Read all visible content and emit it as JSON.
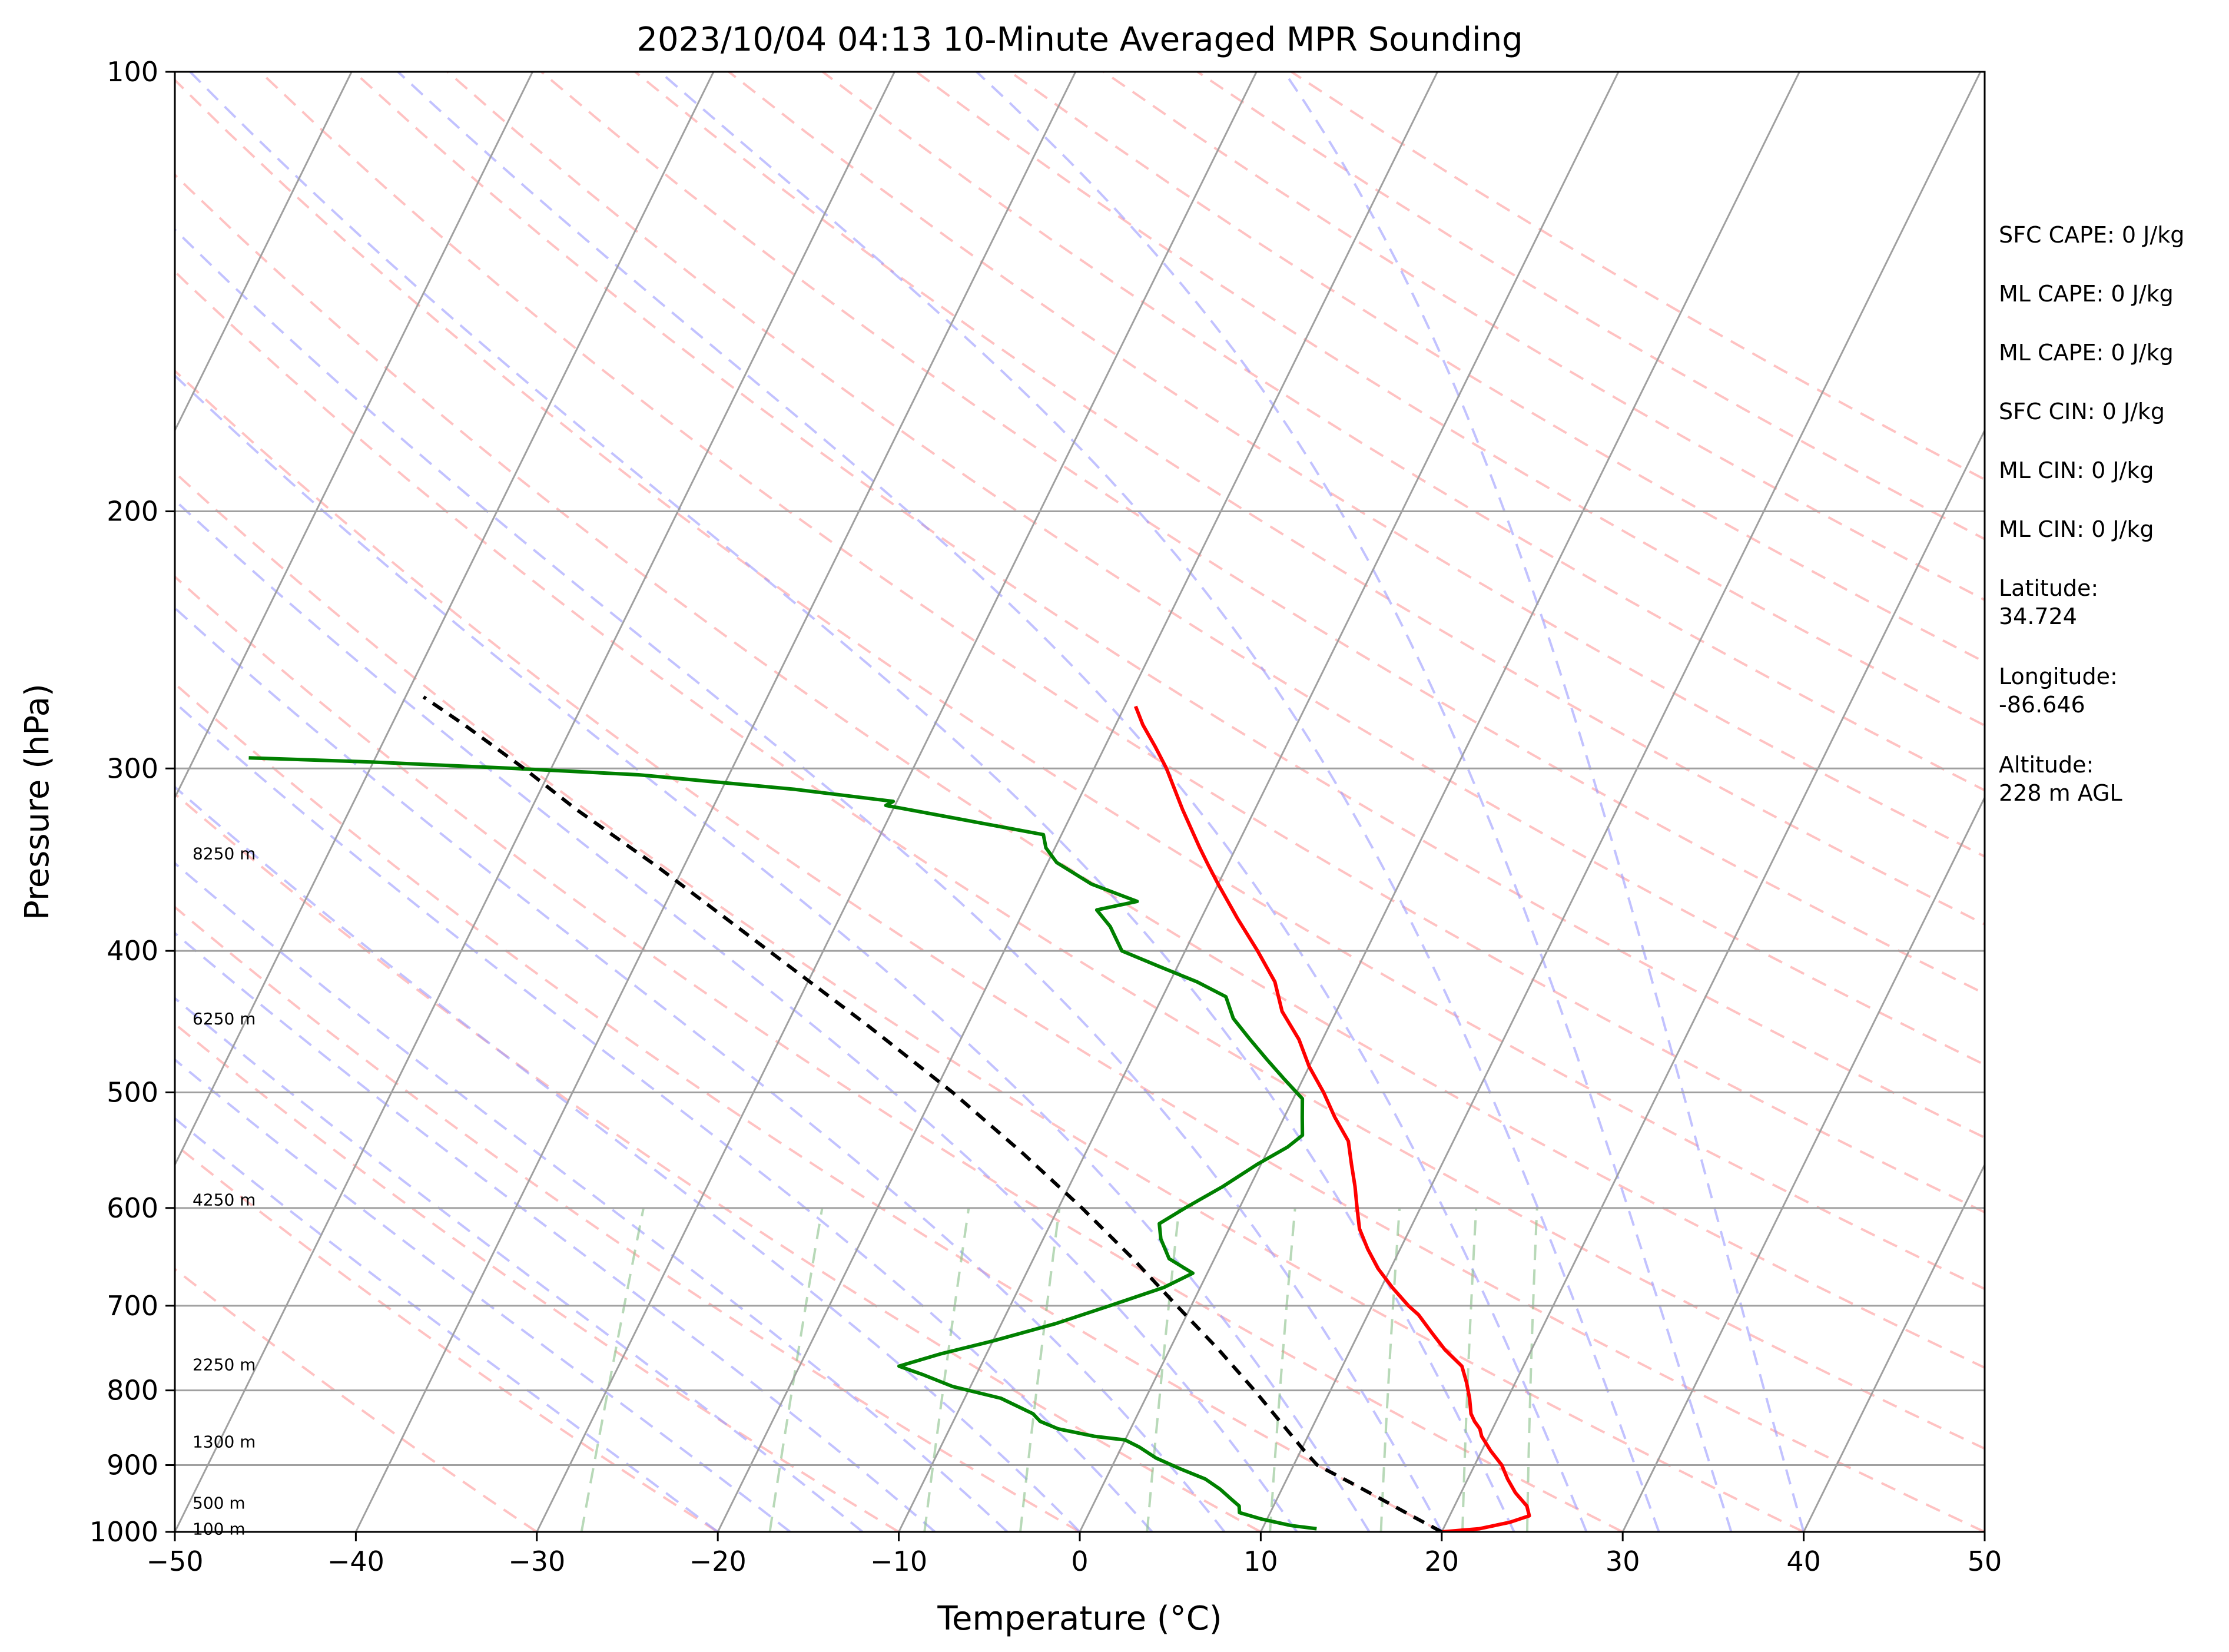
{
  "chart_data": {
    "type": "line",
    "title": "2023/10/04 04:13 10-Minute Averaged MPR Sounding",
    "xlabel": "Temperature (°C)",
    "ylabel": "Pressure (hPa)",
    "xlim": [
      -50,
      50
    ],
    "ylim": [
      1000,
      100
    ],
    "y_scale": "log",
    "grid": true,
    "x_ticks": [
      "−50",
      "−40",
      "−30",
      "−20",
      "−10",
      "0",
      "10",
      "20",
      "30",
      "40",
      "50"
    ],
    "y_ticks": [
      {
        "p": 100,
        "label": "100"
      },
      {
        "p": 200,
        "label": "200"
      },
      {
        "p": 300,
        "label": "300"
      },
      {
        "p": 400,
        "label": "400"
      },
      {
        "p": 500,
        "label": "500"
      },
      {
        "p": 600,
        "label": "600"
      },
      {
        "p": 700,
        "label": "700"
      },
      {
        "p": 800,
        "label": "800"
      },
      {
        "p": 900,
        "label": "900"
      },
      {
        "p": 1000,
        "label": "1000"
      }
    ],
    "height_labels": [
      {
        "p": 343,
        "label": "8250 m"
      },
      {
        "p": 445,
        "label": "6250 m"
      },
      {
        "p": 592,
        "label": "4250 m"
      },
      {
        "p": 768,
        "label": "2250 m"
      },
      {
        "p": 867,
        "label": "1300 m"
      },
      {
        "p": 955,
        "label": "500 m"
      },
      {
        "p": 995,
        "label": "100 m"
      }
    ],
    "colors": {
      "temperature": "#ff0000",
      "dewpoint": "#008000",
      "parcel": "#000000",
      "isotherm": "#a0a0a0",
      "dry_adiabat": "#ff9999",
      "moist_adiabat": "#9999ff",
      "mixing_ratio": "#88c088",
      "isobar": "#a0a0a0"
    },
    "series": [
      {
        "key": "temperature",
        "points": [
          {
            "p": 1000,
            "t": 20.0
          },
          {
            "p": 995,
            "t": 22.0
          },
          {
            "p": 985,
            "t": 23.5
          },
          {
            "p": 975,
            "t": 24.4
          },
          {
            "p": 960,
            "t": 24.0
          },
          {
            "p": 940,
            "t": 23.0
          },
          {
            "p": 920,
            "t": 22.2
          },
          {
            "p": 900,
            "t": 21.5
          },
          {
            "p": 880,
            "t": 20.5
          },
          {
            "p": 860,
            "t": 19.6
          },
          {
            "p": 850,
            "t": 19.3
          },
          {
            "p": 840,
            "t": 18.8
          },
          {
            "p": 830,
            "t": 18.4
          },
          {
            "p": 810,
            "t": 17.9
          },
          {
            "p": 790,
            "t": 17.3
          },
          {
            "p": 770,
            "t": 16.6
          },
          {
            "p": 750,
            "t": 15.2
          },
          {
            "p": 730,
            "t": 14.0
          },
          {
            "p": 710,
            "t": 12.8
          },
          {
            "p": 700,
            "t": 12.0
          },
          {
            "p": 680,
            "t": 10.6
          },
          {
            "p": 660,
            "t": 9.3
          },
          {
            "p": 640,
            "t": 8.2
          },
          {
            "p": 620,
            "t": 7.2
          },
          {
            "p": 600,
            "t": 6.5
          },
          {
            "p": 580,
            "t": 5.8
          },
          {
            "p": 560,
            "t": 5.0
          },
          {
            "p": 540,
            "t": 4.2
          },
          {
            "p": 520,
            "t": 2.8
          },
          {
            "p": 500,
            "t": 1.5
          },
          {
            "p": 480,
            "t": 0.0
          },
          {
            "p": 460,
            "t": -1.3
          },
          {
            "p": 440,
            "t": -3.0
          },
          {
            "p": 420,
            "t": -4.2
          },
          {
            "p": 400,
            "t": -6.0
          },
          {
            "p": 380,
            "t": -8.0
          },
          {
            "p": 360,
            "t": -10.0
          },
          {
            "p": 350,
            "t": -11.0
          },
          {
            "p": 340,
            "t": -12.0
          },
          {
            "p": 320,
            "t": -14.0
          },
          {
            "p": 300,
            "t": -16.0
          },
          {
            "p": 290,
            "t": -17.2
          },
          {
            "p": 280,
            "t": -18.5
          },
          {
            "p": 272,
            "t": -19.4
          }
        ]
      },
      {
        "key": "dewpoint",
        "points": [
          {
            "p": 995,
            "t": 13.0
          },
          {
            "p": 990,
            "t": 11.5
          },
          {
            "p": 980,
            "t": 9.7
          },
          {
            "p": 970,
            "t": 8.3
          },
          {
            "p": 960,
            "t": 8.1
          },
          {
            "p": 950,
            "t": 7.5
          },
          {
            "p": 935,
            "t": 6.6
          },
          {
            "p": 920,
            "t": 5.5
          },
          {
            "p": 905,
            "t": 3.8
          },
          {
            "p": 890,
            "t": 2.2
          },
          {
            "p": 875,
            "t": 1.0
          },
          {
            "p": 865,
            "t": 0.0
          },
          {
            "p": 860,
            "t": -1.8
          },
          {
            "p": 850,
            "t": -4.0
          },
          {
            "p": 840,
            "t": -5.2
          },
          {
            "p": 830,
            "t": -5.8
          },
          {
            "p": 810,
            "t": -8.0
          },
          {
            "p": 795,
            "t": -11.0
          },
          {
            "p": 780,
            "t": -13.0
          },
          {
            "p": 770,
            "t": -14.5
          },
          {
            "p": 755,
            "t": -12.5
          },
          {
            "p": 740,
            "t": -10.0
          },
          {
            "p": 720,
            "t": -7.0
          },
          {
            "p": 700,
            "t": -4.5
          },
          {
            "p": 680,
            "t": -2.0
          },
          {
            "p": 665,
            "t": -0.8
          },
          {
            "p": 650,
            "t": -2.5
          },
          {
            "p": 630,
            "t": -3.5
          },
          {
            "p": 615,
            "t": -4.0
          },
          {
            "p": 600,
            "t": -3.0
          },
          {
            "p": 580,
            "t": -1.5
          },
          {
            "p": 560,
            "t": -0.2
          },
          {
            "p": 545,
            "t": 1.0
          },
          {
            "p": 535,
            "t": 1.5
          },
          {
            "p": 520,
            "t": 1.0
          },
          {
            "p": 505,
            "t": 0.5
          },
          {
            "p": 490,
            "t": -1.0
          },
          {
            "p": 475,
            "t": -2.5
          },
          {
            "p": 460,
            "t": -4.0
          },
          {
            "p": 445,
            "t": -5.5
          },
          {
            "p": 430,
            "t": -6.5
          },
          {
            "p": 420,
            "t": -8.5
          },
          {
            "p": 410,
            "t": -11.0
          },
          {
            "p": 400,
            "t": -13.5
          },
          {
            "p": 385,
            "t": -14.8
          },
          {
            "p": 375,
            "t": -16.0
          },
          {
            "p": 370,
            "t": -14.0
          },
          {
            "p": 360,
            "t": -17.0
          },
          {
            "p": 348,
            "t": -19.5
          },
          {
            "p": 340,
            "t": -20.5
          },
          {
            "p": 333,
            "t": -21.0
          },
          {
            "p": 325,
            "t": -26.0
          },
          {
            "p": 318,
            "t": -30.5
          },
          {
            "p": 316,
            "t": -30.2
          },
          {
            "p": 310,
            "t": -36.0
          },
          {
            "p": 303,
            "t": -45.0
          },
          {
            "p": 300,
            "t": -52.0
          },
          {
            "p": 297,
            "t": -60.0
          },
          {
            "p": 295,
            "t": -67.0
          }
        ]
      },
      {
        "key": "parcel",
        "points": [
          {
            "p": 1000,
            "t": 20.0
          },
          {
            "p": 975,
            "t": 17.9
          },
          {
            "p": 950,
            "t": 15.8
          },
          {
            "p": 925,
            "t": 13.6
          },
          {
            "p": 900,
            "t": 11.3
          },
          {
            "p": 880,
            "t": 10.2
          },
          {
            "p": 850,
            "t": 8.6
          },
          {
            "p": 800,
            "t": 5.8
          },
          {
            "p": 750,
            "t": 2.7
          },
          {
            "p": 700,
            "t": -0.8
          },
          {
            "p": 650,
            "t": -4.5
          },
          {
            "p": 600,
            "t": -8.7
          },
          {
            "p": 550,
            "t": -13.5
          },
          {
            "p": 500,
            "t": -19.0
          },
          {
            "p": 450,
            "t": -25.5
          },
          {
            "p": 400,
            "t": -33.0
          },
          {
            "p": 350,
            "t": -41.5
          },
          {
            "p": 320,
            "t": -47.5
          },
          {
            "p": 300,
            "t": -51.5
          },
          {
            "p": 280,
            "t": -56.0
          },
          {
            "p": 268,
            "t": -59.0
          }
        ]
      }
    ]
  },
  "info_panel": [
    {
      "label": "SFC CAPE: 0 J/kg"
    },
    {
      "label": "ML CAPE: 0 J/kg"
    },
    {
      "label": "ML CAPE: 0 J/kg"
    },
    {
      "label": "SFC CIN: 0 J/kg"
    },
    {
      "label": "ML CIN: 0 J/kg"
    },
    {
      "label": "ML CIN: 0 J/kg"
    },
    {
      "label": "Latitude:",
      "value": "34.724"
    },
    {
      "label": "Longitude:",
      "value": "-86.646"
    },
    {
      "label": "Altitude:",
      "value": "228 m AGL"
    }
  ]
}
